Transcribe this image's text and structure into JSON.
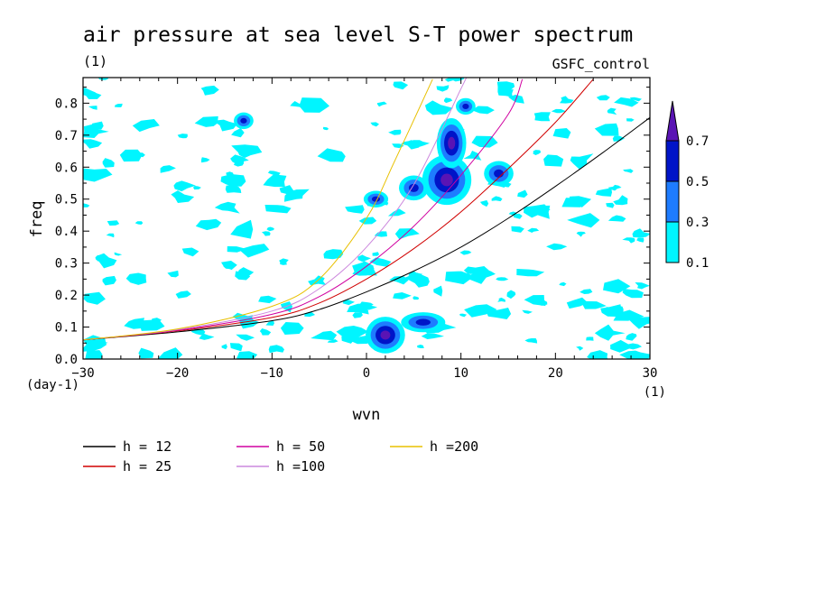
{
  "chart_data": {
    "type": "contour",
    "title": "air pressure at sea level S-T power spectrum",
    "subtitle_left": "(1)",
    "subtitle_right": "GSFC_control",
    "xlabel": "wvn",
    "ylabel": "freq",
    "x_unit": "(1)",
    "y_unit": "(day-1)",
    "xlim": [
      -30,
      30
    ],
    "ylim": [
      0,
      0.88
    ],
    "xticks": [
      -30,
      -20,
      -10,
      0,
      10,
      20,
      30
    ],
    "yticks": [
      "0.0",
      "0.1",
      "0.2",
      "0.3",
      "0.4",
      "0.5",
      "0.6",
      "0.7",
      "0.8"
    ],
    "contour_levels": [
      {
        "value": "0.1",
        "color": "#00f5ff"
      },
      {
        "value": "0.3",
        "color": "#1e7cff"
      },
      {
        "value": "0.5",
        "color": "#0014c8"
      },
      {
        "value": "0.7",
        "color": "#5a14b4"
      }
    ],
    "series": [
      {
        "name": "h = 12",
        "color": "#000000",
        "x": [
          -30,
          -20,
          -10,
          -5,
          0,
          5,
          10,
          15,
          20,
          25,
          30
        ],
        "y": [
          0.06,
          0.085,
          0.12,
          0.155,
          0.21,
          0.275,
          0.35,
          0.44,
          0.54,
          0.645,
          0.755
        ]
      },
      {
        "name": "h = 25",
        "color": "#d00000",
        "x": [
          -30,
          -20,
          -10,
          -5,
          0,
          5,
          10,
          15,
          20,
          24
        ],
        "y": [
          0.06,
          0.088,
          0.13,
          0.175,
          0.25,
          0.345,
          0.46,
          0.595,
          0.74,
          0.875
        ]
      },
      {
        "name": "h = 50",
        "color": "#d000a0",
        "x": [
          -30,
          -20,
          -10,
          -5,
          0,
          5,
          10,
          15,
          16.5
        ],
        "y": [
          0.06,
          0.09,
          0.14,
          0.195,
          0.29,
          0.415,
          0.575,
          0.765,
          0.875
        ]
      },
      {
        "name": "h =100",
        "color": "#cc88dd",
        "x": [
          -30,
          -20,
          -10,
          -5,
          0,
          5,
          10,
          10.5
        ],
        "y": [
          0.06,
          0.092,
          0.15,
          0.22,
          0.35,
          0.545,
          0.845,
          0.875
        ]
      },
      {
        "name": "h =200",
        "color": "#e8c000",
        "x": [
          -30,
          -20,
          -10,
          -5,
          0,
          3,
          7
        ],
        "y": [
          0.06,
          0.094,
          0.165,
          0.25,
          0.44,
          0.62,
          0.875
        ]
      }
    ],
    "blobs": [
      {
        "x": 2,
        "y": 0.075,
        "rx": 0.8,
        "ry": 0.022,
        "level": 3
      },
      {
        "x": 6,
        "y": 0.115,
        "rx": 0.9,
        "ry": 0.012,
        "level": 2
      },
      {
        "x": 8.5,
        "y": 0.56,
        "rx": 1.0,
        "ry": 0.03,
        "level": 3
      },
      {
        "x": 9,
        "y": 0.675,
        "rx": 0.6,
        "ry": 0.03,
        "level": 3
      },
      {
        "x": 5,
        "y": 0.535,
        "rx": 0.6,
        "ry": 0.015,
        "level": 2
      },
      {
        "x": 14,
        "y": 0.58,
        "rx": 0.6,
        "ry": 0.015,
        "level": 2
      },
      {
        "x": 1,
        "y": 0.5,
        "rx": 0.5,
        "ry": 0.01,
        "level": 2
      },
      {
        "x": -13,
        "y": 0.745,
        "rx": 0.4,
        "ry": 0.01,
        "level": 2
      },
      {
        "x": 10.5,
        "y": 0.79,
        "rx": 0.4,
        "ry": 0.01,
        "level": 2
      }
    ],
    "legend_placement": "bottom",
    "grid": false
  }
}
